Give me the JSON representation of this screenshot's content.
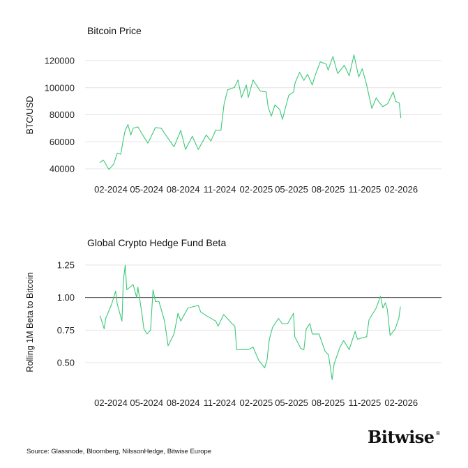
{
  "source": "Source: Glassnode, Bloomberg, NilssonHedge, Bitwise Europe",
  "logo": "Bitwise®",
  "colors": {
    "line": "#3cc878",
    "grid": "#e4e4e4",
    "reference_line": "#555555"
  },
  "chart_data": [
    {
      "type": "line",
      "title": "Bitcoin Price",
      "ylabel": "BTC/USD",
      "xlabel": "",
      "ylim": [
        40000,
        120000
      ],
      "yticks": [
        "40000",
        "60000",
        "80000",
        "100000",
        "120000"
      ],
      "xticks": [
        {
          "date": "2024-02-01",
          "label": "02-2024"
        },
        {
          "date": "2024-05-01",
          "label": "05-2024"
        },
        {
          "date": "2024-08-01",
          "label": "08-2024"
        },
        {
          "date": "2024-11-01",
          "label": "11-2024"
        },
        {
          "date": "2025-02-01",
          "label": "02-2025"
        },
        {
          "date": "2025-05-01",
          "label": "05-2025"
        },
        {
          "date": "2025-08-01",
          "label": "08-2025"
        },
        {
          "date": "2025-11-01",
          "label": "11-2025"
        },
        {
          "date": "2026-02-01",
          "label": "02-2026"
        }
      ],
      "grid": "horizontal",
      "x": [
        "2024-01-04",
        "2024-01-13",
        "2024-01-27",
        "2024-02-08",
        "2024-02-17",
        "2024-02-26",
        "2024-03-03",
        "2024-03-08",
        "2024-03-15",
        "2024-03-22",
        "2024-03-28",
        "2024-04-09",
        "2024-04-21",
        "2024-05-04",
        "2024-05-11",
        "2024-05-23",
        "2024-06-07",
        "2024-06-18",
        "2024-07-09",
        "2024-07-26",
        "2024-08-07",
        "2024-08-24",
        "2024-09-08",
        "2024-09-28",
        "2024-10-10",
        "2024-10-22",
        "2024-11-04",
        "2024-11-12",
        "2024-11-21",
        "2024-12-08",
        "2024-12-17",
        "2024-12-26",
        "2025-01-07",
        "2025-01-12",
        "2025-01-24",
        "2025-02-11",
        "2025-02-26",
        "2025-03-03",
        "2025-03-11",
        "2025-03-20",
        "2025-04-01",
        "2025-04-08",
        "2025-04-15",
        "2025-04-24",
        "2025-05-06",
        "2025-05-10",
        "2025-05-21",
        "2025-06-01",
        "2025-06-10",
        "2025-06-22",
        "2025-06-28",
        "2025-07-12",
        "2025-07-27",
        "2025-08-01",
        "2025-08-13",
        "2025-08-25",
        "2025-09-11",
        "2025-09-23",
        "2025-10-05",
        "2025-10-17",
        "2025-10-26",
        "2025-11-06",
        "2025-11-19",
        "2025-11-30",
        "2025-12-08",
        "2025-12-17",
        "2025-12-29",
        "2026-01-12",
        "2026-01-18",
        "2026-01-27",
        "2026-01-31"
      ],
      "values": [
        44600,
        46400,
        39500,
        43400,
        51500,
        50800,
        61500,
        68400,
        72700,
        65000,
        70000,
        71000,
        65000,
        59000,
        63000,
        70500,
        70000,
        65000,
        56300,
        68400,
        54300,
        64000,
        54300,
        65000,
        60600,
        68700,
        68400,
        88000,
        98500,
        100200,
        105700,
        92800,
        102000,
        92800,
        105700,
        97600,
        96800,
        85600,
        79000,
        87300,
        83900,
        76600,
        84700,
        94500,
        96800,
        103700,
        111400,
        105400,
        110000,
        102000,
        108000,
        119100,
        117400,
        113000,
        123100,
        110500,
        116600,
        108800,
        124300,
        108000,
        114000,
        102000,
        84700,
        92500,
        89000,
        86000,
        88200,
        96800,
        89900,
        88700,
        77800
      ]
    },
    {
      "type": "line",
      "title": "Global Crypto Hedge Fund Beta",
      "ylabel": "Rolling 1M Beta to Bitcoin",
      "xlabel": "",
      "ylim": [
        0.5,
        1.25
      ],
      "yticks": [
        "0.50",
        "0.75",
        "1.00",
        "1.25"
      ],
      "reference_line": 1.0,
      "xticks": [
        {
          "date": "2024-02-01",
          "label": "02-2024"
        },
        {
          "date": "2024-05-01",
          "label": "05-2024"
        },
        {
          "date": "2024-08-01",
          "label": "08-2024"
        },
        {
          "date": "2024-11-01",
          "label": "11-2024"
        },
        {
          "date": "2025-02-01",
          "label": "02-2025"
        },
        {
          "date": "2025-05-01",
          "label": "05-2025"
        },
        {
          "date": "2025-08-01",
          "label": "08-2025"
        },
        {
          "date": "2025-11-01",
          "label": "11-2025"
        },
        {
          "date": "2026-02-01",
          "label": "02-2026"
        }
      ],
      "grid": "horizontal",
      "x": [
        "2024-01-05",
        "2024-01-15",
        "2024-01-19",
        "2024-02-03",
        "2024-02-13",
        "2024-02-17",
        "2024-02-29",
        "2024-03-03",
        "2024-03-08",
        "2024-03-12",
        "2024-03-28",
        "2024-04-06",
        "2024-04-09",
        "2024-04-19",
        "2024-04-24",
        "2024-05-02",
        "2024-05-11",
        "2024-05-17",
        "2024-05-23",
        "2024-06-01",
        "2024-06-15",
        "2024-06-24",
        "2024-07-09",
        "2024-07-19",
        "2024-07-26",
        "2024-08-13",
        "2024-09-08",
        "2024-09-14",
        "2024-09-29",
        "2024-10-22",
        "2024-10-28",
        "2024-11-11",
        "2024-12-02",
        "2024-12-09",
        "2024-12-14",
        "2025-01-12",
        "2025-01-24",
        "2025-02-07",
        "2025-02-22",
        "2025-02-28",
        "2025-03-06",
        "2025-03-14",
        "2025-03-29",
        "2025-04-07",
        "2025-04-21",
        "2025-05-06",
        "2025-05-09",
        "2025-05-24",
        "2025-06-01",
        "2025-06-07",
        "2025-06-16",
        "2025-06-22",
        "2025-07-09",
        "2025-07-24",
        "2025-08-02",
        "2025-08-11",
        "2025-08-16",
        "2025-08-31",
        "2025-09-09",
        "2025-09-23",
        "2025-10-08",
        "2025-10-14",
        "2025-11-06",
        "2025-11-12",
        "2025-11-30",
        "2025-12-11",
        "2025-12-17",
        "2025-12-23",
        "2025-12-28",
        "2026-01-04",
        "2026-01-17",
        "2026-01-26",
        "2026-01-30"
      ],
      "values": [
        0.86,
        0.76,
        0.84,
        0.95,
        1.05,
        0.95,
        0.82,
        1.12,
        1.25,
        1.06,
        1.1,
        1.0,
        1.08,
        0.88,
        0.76,
        0.72,
        0.75,
        1.06,
        0.97,
        0.97,
        0.82,
        0.63,
        0.72,
        0.88,
        0.82,
        0.92,
        0.94,
        0.89,
        0.86,
        0.82,
        0.78,
        0.87,
        0.8,
        0.78,
        0.6,
        0.6,
        0.62,
        0.52,
        0.46,
        0.52,
        0.68,
        0.77,
        0.84,
        0.8,
        0.8,
        0.88,
        0.7,
        0.61,
        0.6,
        0.76,
        0.8,
        0.72,
        0.72,
        0.59,
        0.56,
        0.37,
        0.49,
        0.62,
        0.67,
        0.6,
        0.74,
        0.68,
        0.7,
        0.83,
        0.92,
        1.01,
        0.92,
        0.96,
        0.91,
        0.71,
        0.76,
        0.84,
        0.93
      ]
    }
  ]
}
